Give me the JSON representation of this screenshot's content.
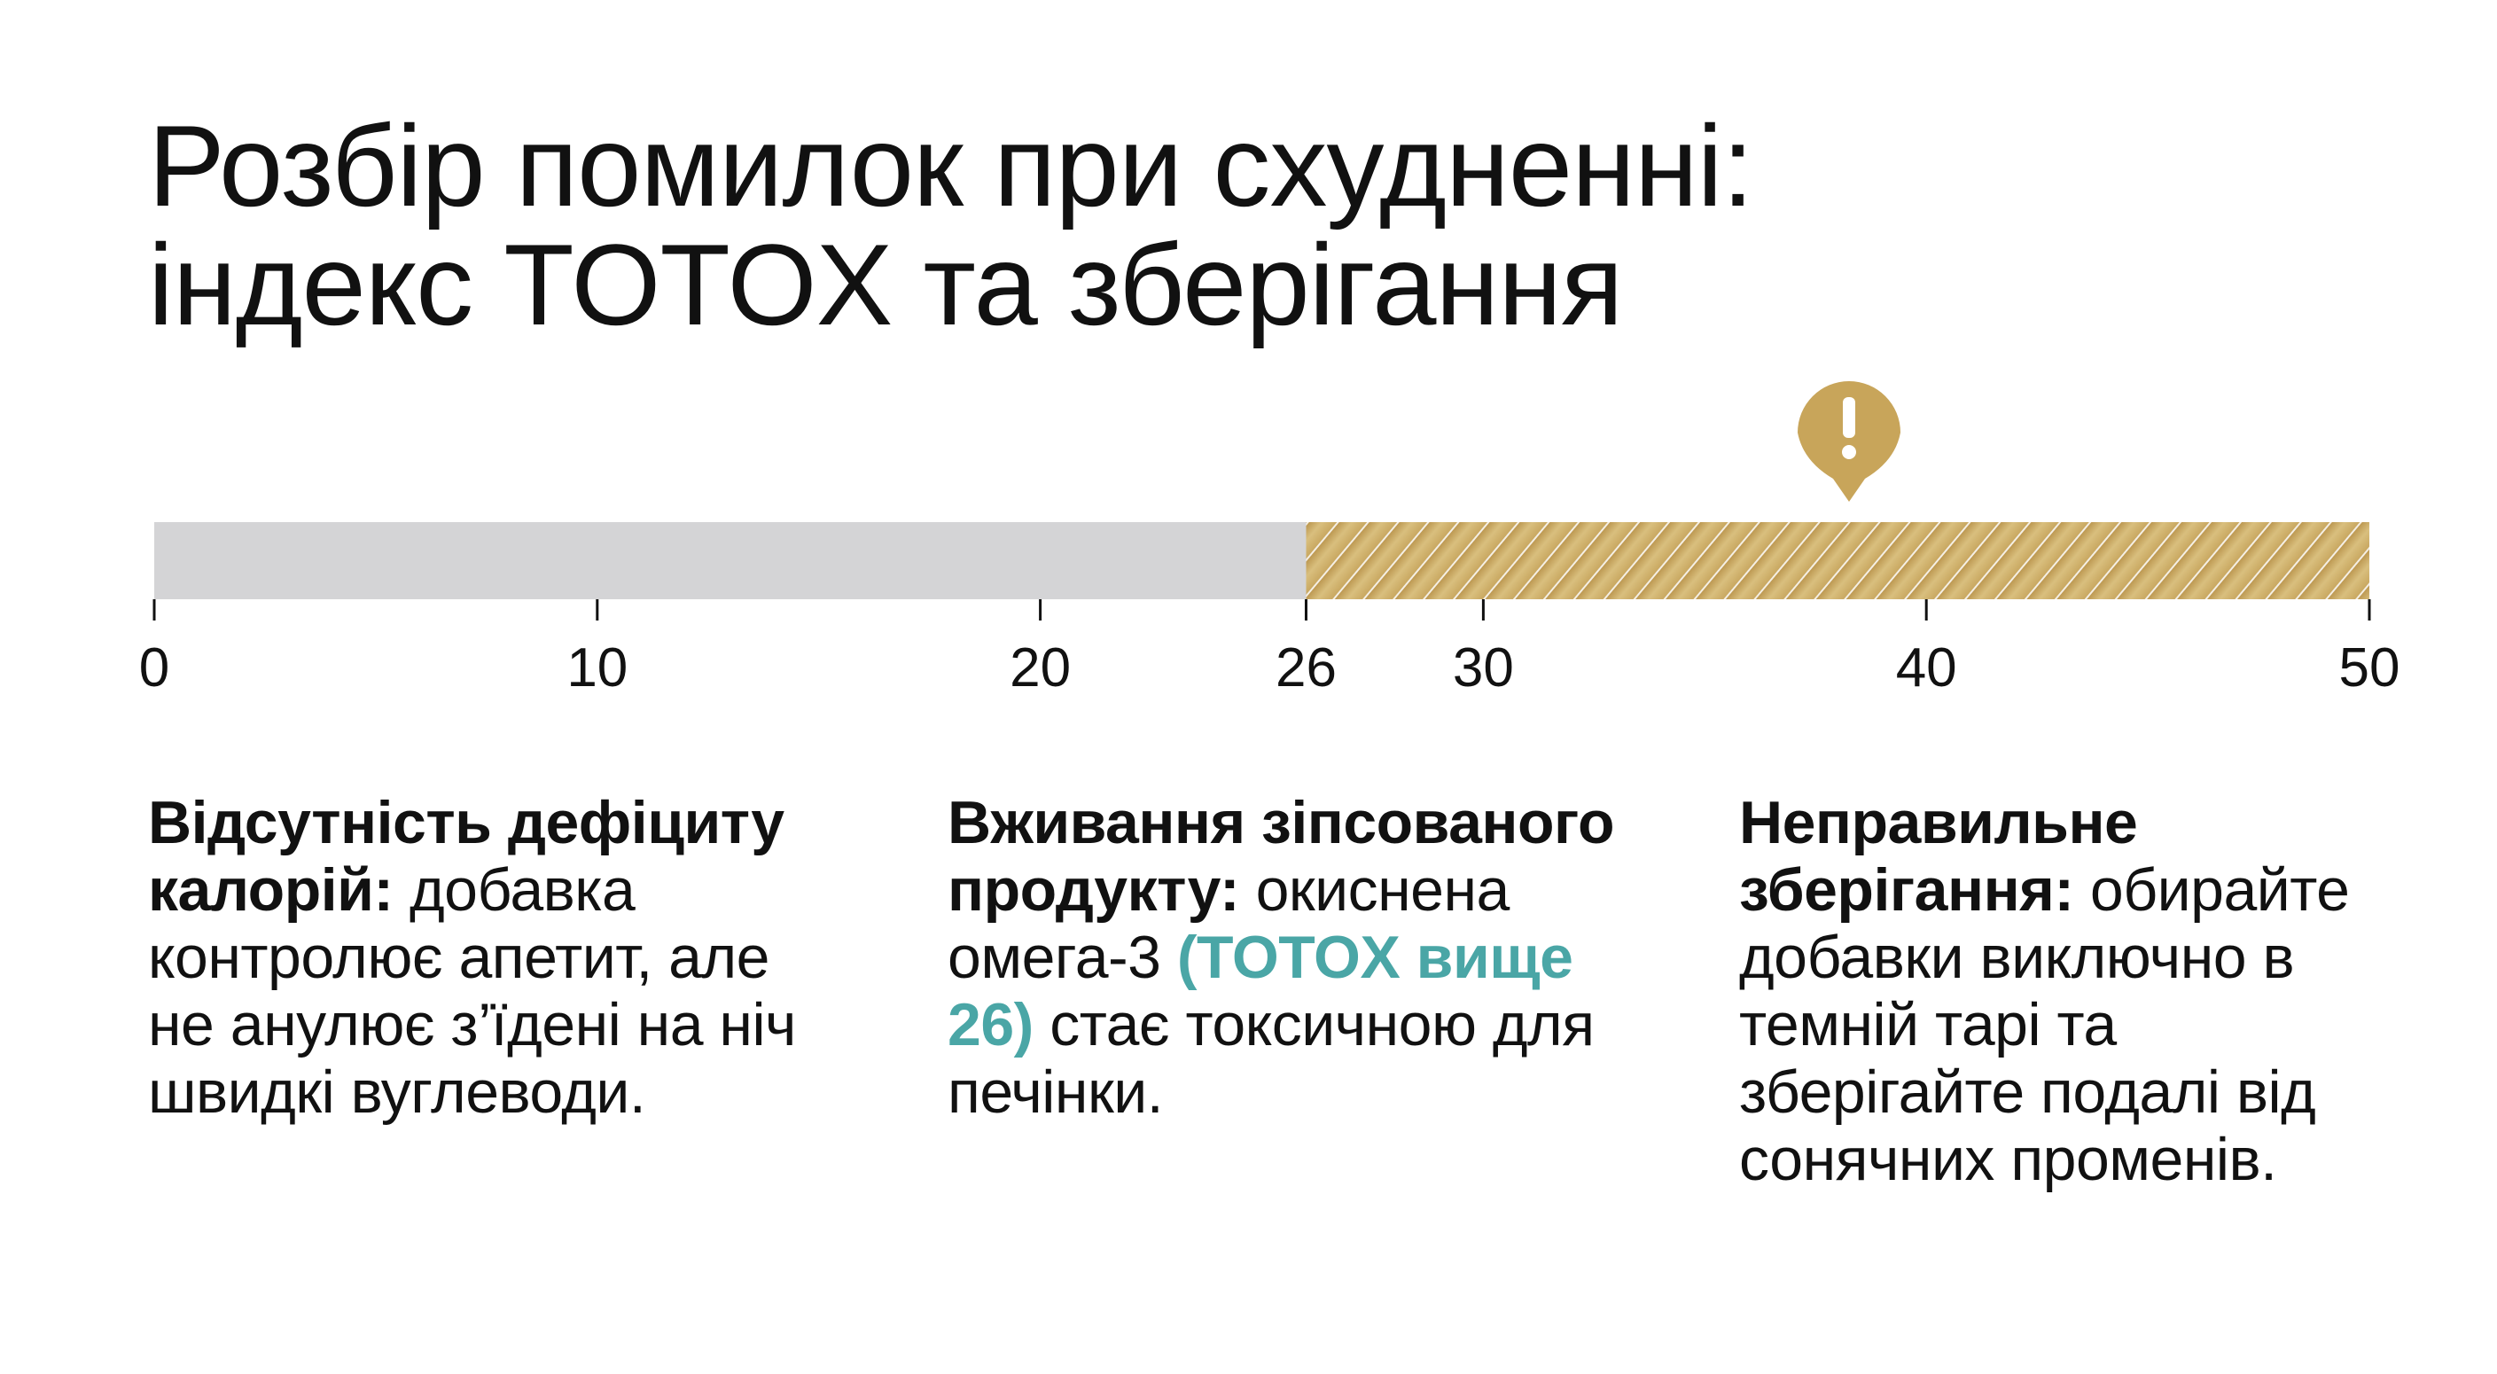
{
  "title": [
    "Розбір помилок при схудненні:",
    "індекс TOTOX та зберігання"
  ],
  "scale": {
    "min": 0,
    "max": 50,
    "ticks": [
      0,
      10,
      20,
      26,
      30,
      40,
      50
    ],
    "segments": [
      {
        "from": 0,
        "to": 26
      },
      {
        "from": 26,
        "to": 50
      }
    ]
  },
  "columns": [
    {
      "heading": "Відсутність дефіциту калорій:",
      "text": "добавка контролює апетит, але не анулює з’їдені на ніч швидкі вуглеводи."
    },
    {
      "heading": "Вживання зіпсованого продукту:",
      "text": "окиснена омега-3",
      "highlight": "(TOTOX вище 26)",
      "text_after": "стає токсичною для печінки."
    },
    {
      "heading": "Неправильне зберігання:",
      "text": "обирайте добавки виключно в темній тарі та зберігайте подалі від сонячних променів."
    }
  ]
}
